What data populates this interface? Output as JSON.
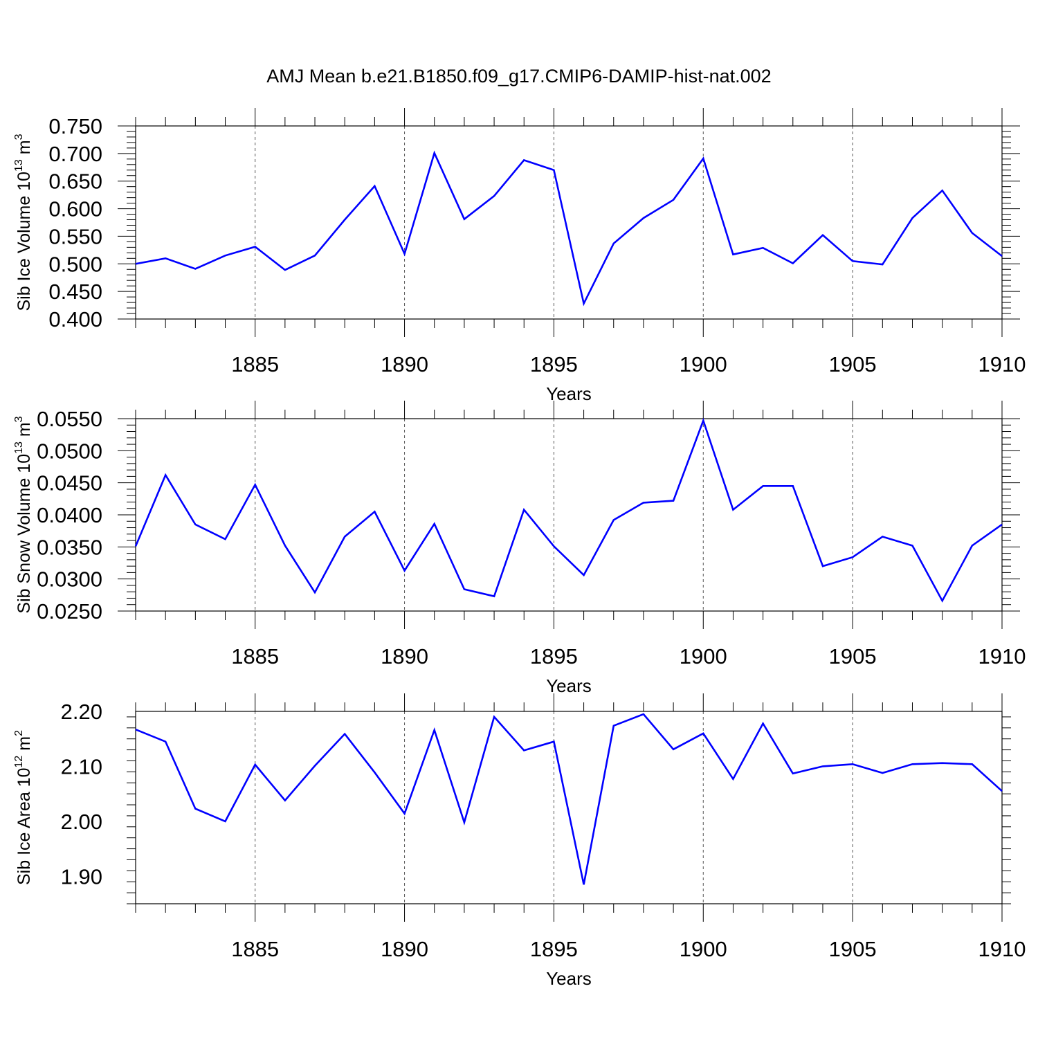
{
  "title": "AMJ Mean b.e21.B1850.f09_g17.CMIP6-DAMIP-hist-nat.002",
  "line_color": "#0000ff",
  "chart_data": [
    {
      "type": "line",
      "title": "AMJ Mean b.e21.B1850.f09_g17.CMIP6-DAMIP-hist-nat.002",
      "xlabel": "Years",
      "ylabel": {
        "text": "Sib Ice Volume 10",
        "sup1": "13",
        "mid": " m",
        "sup2": "3"
      },
      "xlim": [
        1881,
        1910
      ],
      "ylim": [
        0.4,
        0.75
      ],
      "x_ticks": [
        1885,
        1890,
        1895,
        1900,
        1905,
        1910
      ],
      "y_ticks": [
        0.4,
        0.45,
        0.5,
        0.55,
        0.6,
        0.65,
        0.7,
        0.75
      ],
      "y_tick_labels": [
        "0.400",
        "0.450",
        "0.500",
        "0.550",
        "0.600",
        "0.650",
        "0.700",
        "0.750"
      ],
      "grid": "vertical dashed at major x ticks",
      "x": [
        1881,
        1882,
        1883,
        1884,
        1885,
        1886,
        1887,
        1888,
        1889,
        1890,
        1891,
        1892,
        1893,
        1894,
        1895,
        1896,
        1897,
        1898,
        1899,
        1900,
        1901,
        1902,
        1903,
        1904,
        1905,
        1906,
        1907,
        1908,
        1909,
        1910
      ],
      "series": [
        {
          "values": [
            0.5,
            0.51,
            0.491,
            0.515,
            0.531,
            0.489,
            0.515,
            0.58,
            0.641,
            0.518,
            0.701,
            0.581,
            0.623,
            0.688,
            0.67,
            0.428,
            0.537,
            0.583,
            0.616,
            0.691,
            0.517,
            0.529,
            0.501,
            0.552,
            0.505,
            0.499,
            0.583,
            0.633,
            0.556,
            0.514
          ]
        }
      ]
    },
    {
      "type": "line",
      "xlabel": "Years",
      "ylabel": {
        "text": "Sib Snow Volume 10",
        "sup1": "13",
        "mid": " m",
        "sup2": "3"
      },
      "xlim": [
        1881,
        1910
      ],
      "ylim": [
        0.025,
        0.055
      ],
      "x_ticks": [
        1885,
        1890,
        1895,
        1900,
        1905,
        1910
      ],
      "y_ticks": [
        0.025,
        0.03,
        0.035,
        0.04,
        0.045,
        0.05,
        0.055
      ],
      "y_tick_labels": [
        "0.0250",
        "0.0300",
        "0.0350",
        "0.0400",
        "0.0450",
        "0.0500",
        "0.0550"
      ],
      "grid": "vertical dashed at major x ticks",
      "x": [
        1881,
        1882,
        1883,
        1884,
        1885,
        1886,
        1887,
        1888,
        1889,
        1890,
        1891,
        1892,
        1893,
        1894,
        1895,
        1896,
        1897,
        1898,
        1899,
        1900,
        1901,
        1902,
        1903,
        1904,
        1905,
        1906,
        1907,
        1908,
        1909,
        1910
      ],
      "series": [
        {
          "values": [
            0.0351,
            0.0462,
            0.0385,
            0.0362,
            0.0447,
            0.0352,
            0.0279,
            0.0366,
            0.0405,
            0.0313,
            0.0386,
            0.0284,
            0.0273,
            0.0408,
            0.0351,
            0.0306,
            0.0392,
            0.0419,
            0.0422,
            0.0547,
            0.0408,
            0.0445,
            0.0445,
            0.032,
            0.0334,
            0.0366,
            0.0352,
            0.0266,
            0.0352,
            0.0385
          ]
        }
      ]
    },
    {
      "type": "line",
      "xlabel": "Years",
      "ylabel": {
        "text": "Sib Ice Area 10",
        "sup1": "12",
        "mid": " m",
        "sup2": "2"
      },
      "xlim": [
        1881,
        1910
      ],
      "ylim": [
        1.85,
        2.2
      ],
      "x_ticks": [
        1885,
        1890,
        1895,
        1900,
        1905,
        1910
      ],
      "y_ticks": [
        1.9,
        2.0,
        2.1,
        2.2
      ],
      "y_tick_labels": [
        "1.90",
        "2.00",
        "2.10",
        "2.20"
      ],
      "grid": "vertical dashed at major x ticks",
      "x": [
        1881,
        1882,
        1883,
        1884,
        1885,
        1886,
        1887,
        1888,
        1889,
        1890,
        1891,
        1892,
        1893,
        1894,
        1895,
        1896,
        1897,
        1898,
        1899,
        1900,
        1901,
        1902,
        1903,
        1904,
        1905,
        1906,
        1907,
        1908,
        1909,
        1910
      ],
      "series": [
        {
          "values": [
            2.167,
            2.145,
            2.023,
            2.0,
            2.103,
            2.038,
            2.101,
            2.159,
            2.089,
            2.014,
            2.166,
            1.998,
            2.19,
            2.129,
            2.145,
            1.885,
            2.174,
            2.195,
            2.131,
            2.16,
            2.077,
            2.178,
            2.087,
            2.1,
            2.104,
            2.088,
            2.104,
            2.106,
            2.104,
            2.055
          ]
        }
      ]
    }
  ]
}
